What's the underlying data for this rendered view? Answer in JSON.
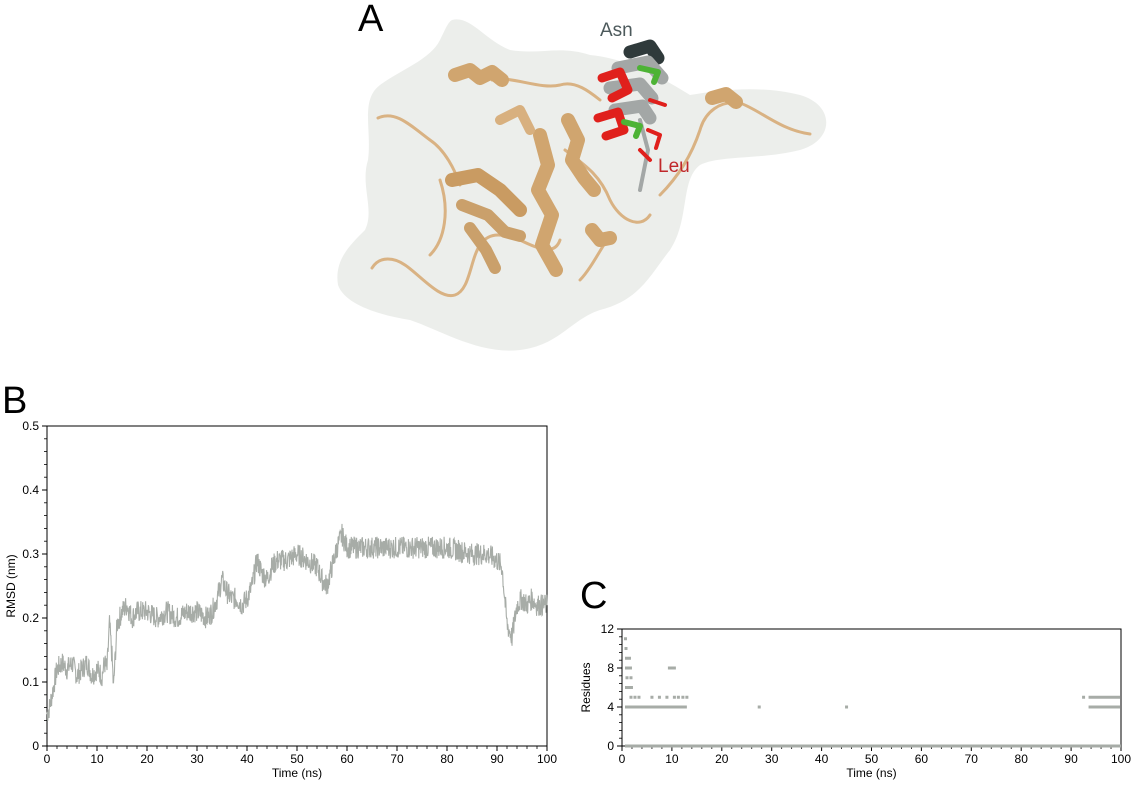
{
  "panels": {
    "a_letter": "A",
    "b_letter": "B",
    "c_letter": "C"
  },
  "structure": {
    "labels": [
      {
        "text": "Asn",
        "color": "#4d5a5c"
      },
      {
        "text": "Leu",
        "color": "#c0282a"
      }
    ],
    "colors": {
      "ribbon": "#d9b283",
      "surface": "#e8e9e6",
      "helix_dark": "#2f3a3b",
      "helix_grey": "#a3a7a6",
      "sidechain_red": "#e0201c",
      "sidechain_green": "#4db335"
    }
  },
  "chart_data": [
    {
      "id": "B",
      "type": "line",
      "xlabel": "Time (ns)",
      "ylabel": "RMSD (nm)",
      "xlim": [
        0,
        100
      ],
      "ylim": [
        0,
        0.5
      ],
      "xticks": [
        0,
        10,
        20,
        30,
        40,
        50,
        60,
        70,
        80,
        90,
        100
      ],
      "yticks": [
        0,
        0.1,
        0.2,
        0.3,
        0.4,
        0.5
      ],
      "ytick_labels": [
        "0",
        "0.1",
        "0.2",
        "0.3",
        "0.4",
        "0.5"
      ],
      "grid": false,
      "color": "#a7aca7",
      "series": [
        {
          "x": [
            0,
            0.5,
            1,
            2,
            3,
            4,
            5,
            6,
            7,
            8,
            9,
            10,
            11,
            11.5,
            12,
            12.5,
            13,
            13.3,
            14,
            15,
            16,
            17,
            18,
            20,
            22,
            24,
            26,
            28,
            30,
            32,
            33,
            34,
            35,
            36,
            37,
            38,
            39,
            40,
            41,
            42,
            43,
            44,
            45,
            46,
            48,
            50,
            52,
            54,
            55,
            56,
            57,
            58,
            59,
            60,
            62,
            65,
            70,
            75,
            80,
            85,
            88,
            90,
            91,
            92,
            93,
            94,
            95,
            96,
            97,
            98,
            99,
            100
          ],
          "y": [
            0.05,
            0.06,
            0.08,
            0.12,
            0.13,
            0.12,
            0.13,
            0.11,
            0.12,
            0.13,
            0.11,
            0.12,
            0.11,
            0.13,
            0.12,
            0.19,
            0.14,
            0.09,
            0.19,
            0.21,
            0.22,
            0.2,
            0.21,
            0.21,
            0.2,
            0.21,
            0.2,
            0.21,
            0.21,
            0.2,
            0.21,
            0.23,
            0.26,
            0.24,
            0.23,
            0.23,
            0.22,
            0.23,
            0.25,
            0.29,
            0.27,
            0.26,
            0.28,
            0.29,
            0.29,
            0.3,
            0.29,
            0.28,
            0.26,
            0.25,
            0.28,
            0.31,
            0.33,
            0.31,
            0.31,
            0.31,
            0.31,
            0.31,
            0.31,
            0.3,
            0.3,
            0.29,
            0.28,
            0.19,
            0.17,
            0.22,
            0.23,
            0.22,
            0.23,
            0.22,
            0.22,
            0.22
          ]
        }
      ]
    },
    {
      "id": "C",
      "type": "scatter",
      "xlabel": "Time (ns)",
      "ylabel": "Residues",
      "xlim": [
        0,
        100
      ],
      "ylim": [
        0,
        12
      ],
      "xticks": [
        0,
        10,
        20,
        30,
        40,
        50,
        60,
        70,
        80,
        90,
        100
      ],
      "yticks": [
        0,
        4,
        8,
        12
      ],
      "ytick_labels": [
        "0",
        "4",
        "8",
        "12"
      ],
      "grid": false,
      "color": "#a7aca7",
      "segments": [
        {
          "x0": 0.6,
          "x1": 100,
          "y": 0
        },
        {
          "x0": 0.6,
          "x1": 13,
          "y": 4
        },
        {
          "x0": 93.5,
          "x1": 99.8,
          "y": 4
        },
        {
          "x0": 93.5,
          "x1": 99.8,
          "y": 5
        },
        {
          "x0": 0.6,
          "x1": 2.2,
          "y": 6
        },
        {
          "x0": 0.6,
          "x1": 2,
          "y": 8
        },
        {
          "x0": 9.2,
          "x1": 10.8,
          "y": 8
        }
      ],
      "points": [
        {
          "x": 27.5,
          "y": 4
        },
        {
          "x": 45,
          "y": 4
        },
        {
          "x": 1.8,
          "y": 5
        },
        {
          "x": 2.6,
          "y": 5
        },
        {
          "x": 3.4,
          "y": 5
        },
        {
          "x": 6,
          "y": 5
        },
        {
          "x": 7.5,
          "y": 5
        },
        {
          "x": 9,
          "y": 5
        },
        {
          "x": 10.5,
          "y": 5
        },
        {
          "x": 11.3,
          "y": 5
        },
        {
          "x": 12.2,
          "y": 5
        },
        {
          "x": 13,
          "y": 5
        },
        {
          "x": 92.5,
          "y": 5
        },
        {
          "x": 1,
          "y": 7
        },
        {
          "x": 1.8,
          "y": 7
        },
        {
          "x": 0.9,
          "y": 9
        },
        {
          "x": 1.5,
          "y": 9
        },
        {
          "x": 0.8,
          "y": 10
        },
        {
          "x": 0.7,
          "y": 11
        }
      ]
    }
  ]
}
